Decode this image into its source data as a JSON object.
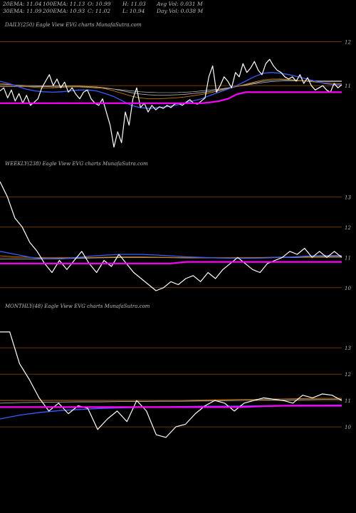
{
  "header": {
    "rows": [
      [
        "20EMA: 11.04",
        "100EMA: 11.13",
        "O: 10.99",
        "H: 11.03",
        "Avg Vol: 0.031 M"
      ],
      [
        "30EMA: 11.09",
        "200EMA: 10.93",
        "C: 11.02",
        "L: 10.94",
        "Day Vol: 0.038 M"
      ]
    ]
  },
  "colors": {
    "background": "#000000",
    "price": "#ffffff",
    "ema_fast": "#3a5cff",
    "ema_orange": "#c87800",
    "ema_grey": "#aaaaaa",
    "ema_white_thin": "#dddddd",
    "support": "#ff00ff",
    "level_line": "#8a4a00"
  },
  "chart_data": [
    {
      "type": "line",
      "label": "DAILY(250) Eagle   View  EVG charts MunafaSutra.com",
      "y_ticks": [
        {
          "value": "12",
          "level": 12
        },
        {
          "value": "11",
          "level": 11
        }
      ],
      "ylim": [
        9.3,
        12.3
      ],
      "series": [
        {
          "role": "price",
          "color": "#ffffff",
          "values": [
            10.88,
            10.95,
            10.72,
            10.9,
            10.65,
            10.82,
            10.6,
            10.78,
            10.55,
            10.62,
            10.7,
            10.95,
            11.1,
            11.25,
            11.0,
            11.15,
            10.95,
            11.08,
            10.85,
            10.95,
            10.8,
            10.7,
            10.85,
            10.9,
            10.7,
            10.6,
            10.55,
            10.7,
            10.4,
            10.1,
            9.6,
            9.95,
            9.7,
            10.4,
            10.1,
            10.7,
            10.95,
            10.5,
            10.6,
            10.4,
            10.55,
            10.45,
            10.52,
            10.48,
            10.55,
            10.5,
            10.58,
            10.6,
            10.55,
            10.62,
            10.68,
            10.6,
            10.58,
            10.65,
            10.72,
            11.2,
            11.45,
            10.85,
            11.0,
            11.2,
            11.1,
            10.95,
            11.3,
            11.2,
            11.5,
            11.3,
            11.4,
            11.55,
            11.35,
            11.25,
            11.5,
            11.6,
            11.45,
            11.35,
            11.3,
            11.2,
            11.15,
            11.2,
            11.1,
            11.25,
            11.05,
            11.18,
            11.0,
            10.9,
            10.95,
            11.0,
            10.9,
            10.85,
            11.05,
            10.95,
            11.02
          ]
        },
        {
          "role": "ema_fast",
          "color": "#3a5cff",
          "values": [
            11.1,
            11.05,
            10.98,
            10.92,
            10.88,
            10.86,
            10.85,
            10.86,
            10.88,
            10.9,
            10.9,
            10.88,
            10.82,
            10.75,
            10.65,
            10.55,
            10.5,
            10.48,
            10.5,
            10.52,
            10.55,
            10.6,
            10.65,
            10.7,
            10.78,
            10.85,
            10.92,
            11.0,
            11.1,
            11.2,
            11.28,
            11.3,
            11.28,
            11.25,
            11.2,
            11.15,
            11.1,
            11.05,
            11.02,
            11.02
          ]
        },
        {
          "role": "ema_orange",
          "color": "#c87800",
          "values": [
            11.05,
            11.03,
            11.0,
            10.98,
            10.96,
            10.95,
            10.95,
            10.96,
            10.97,
            10.98,
            10.97,
            10.96,
            10.93,
            10.88,
            10.82,
            10.76,
            10.72,
            10.7,
            10.7,
            10.71,
            10.72,
            10.74,
            10.77,
            10.8,
            10.84,
            10.88,
            10.93,
            10.98,
            11.03,
            11.08,
            11.13,
            11.15,
            11.15,
            11.14,
            11.12,
            11.1,
            11.08,
            11.06,
            11.05,
            11.04
          ]
        },
        {
          "role": "ema_grey",
          "color": "#aaaaaa",
          "values": [
            11.02,
            11.02,
            11.01,
            11.0,
            11.0,
            10.99,
            10.99,
            10.99,
            10.99,
            10.99,
            10.98,
            10.97,
            10.95,
            10.92,
            10.88,
            10.84,
            10.81,
            10.79,
            10.78,
            10.78,
            10.79,
            10.8,
            10.82,
            10.84,
            10.87,
            10.9,
            10.94,
            10.98,
            11.02,
            11.06,
            11.1,
            11.12,
            11.13,
            11.13,
            11.12,
            11.11,
            11.1,
            11.09,
            11.09,
            11.09
          ]
        },
        {
          "role": "ema_white_thin",
          "color": "#dddddd",
          "values": [
            10.98,
            10.98,
            10.98,
            10.98,
            10.98,
            10.98,
            10.97,
            10.97,
            10.97,
            10.97,
            10.96,
            10.95,
            10.94,
            10.92,
            10.9,
            10.88,
            10.86,
            10.85,
            10.84,
            10.84,
            10.84,
            10.85,
            10.86,
            10.88,
            10.9,
            10.92,
            10.95,
            10.98,
            11.01,
            11.04,
            11.07,
            11.09,
            11.1,
            11.11,
            11.11,
            11.11,
            11.11,
            11.11,
            11.11,
            11.11
          ]
        },
        {
          "role": "support",
          "color": "#ff00ff",
          "values": [
            10.6,
            10.6,
            10.6,
            10.6,
            10.6,
            10.6,
            10.6,
            10.6,
            10.6,
            10.6,
            10.6,
            10.6,
            10.6,
            10.6,
            10.6,
            10.6,
            10.6,
            10.6,
            10.6,
            10.6,
            10.6,
            10.6,
            10.6,
            10.6,
            10.62,
            10.65,
            10.7,
            10.8,
            10.85,
            10.85,
            10.85,
            10.85,
            10.85,
            10.85,
            10.85,
            10.85,
            10.85,
            10.85,
            10.85,
            10.85
          ]
        }
      ],
      "levels": [
        12,
        11
      ]
    },
    {
      "type": "line",
      "label": "WEEKLY(238) Eagle   View  EVG charts MunafaSutra.com",
      "y_ticks": [
        {
          "value": "13",
          "level": 13
        },
        {
          "value": "12",
          "level": 12
        },
        {
          "value": "11",
          "level": 11
        },
        {
          "value": "10",
          "level": 10
        }
      ],
      "ylim": [
        9.5,
        13.9
      ],
      "series": [
        {
          "role": "price",
          "color": "#ffffff",
          "values": [
            13.5,
            13.0,
            12.3,
            12.0,
            11.5,
            11.2,
            10.8,
            10.5,
            10.9,
            10.6,
            10.9,
            11.2,
            10.8,
            10.5,
            10.9,
            10.7,
            11.1,
            10.8,
            10.5,
            10.3,
            10.1,
            9.9,
            10.0,
            10.2,
            10.1,
            10.3,
            10.4,
            10.2,
            10.5,
            10.3,
            10.6,
            10.8,
            11.0,
            10.8,
            10.6,
            10.5,
            10.8,
            10.9,
            11.0,
            11.2,
            11.1,
            11.3,
            11.0,
            11.2,
            11.0,
            11.2,
            11.0
          ]
        },
        {
          "role": "ema_fast",
          "color": "#3a5cff",
          "values": [
            11.2,
            11.1,
            11.0,
            10.95,
            10.95,
            11.0,
            11.05,
            11.08,
            11.1,
            11.1,
            11.08,
            11.05,
            11.02,
            11.0,
            10.98,
            10.97,
            10.97,
            10.98,
            11.0,
            11.02,
            11.05,
            11.06,
            11.06
          ]
        },
        {
          "role": "ema_orange",
          "color": "#c87800",
          "values": [
            11.05,
            11.02,
            11.0,
            10.98,
            10.98,
            10.99,
            11.0,
            11.01,
            11.02,
            11.02,
            11.01,
            11.0,
            10.99,
            10.98,
            10.98,
            10.98,
            10.99,
            11.0,
            11.01,
            11.02,
            11.02,
            11.03,
            11.04
          ]
        },
        {
          "role": "ema_grey",
          "color": "#aaaaaa",
          "values": [
            10.95,
            10.95,
            10.95,
            10.95,
            10.96,
            10.97,
            10.98,
            10.99,
            11.0,
            11.0,
            11.0,
            10.99,
            10.98,
            10.98,
            10.98,
            10.98,
            10.98,
            10.99,
            11.0,
            11.0,
            11.01,
            11.01,
            11.01
          ]
        },
        {
          "role": "support",
          "color": "#ff00ff",
          "values": [
            10.8,
            10.8,
            10.8,
            10.8,
            10.8,
            10.8,
            10.8,
            10.8,
            10.8,
            10.8,
            10.8,
            10.8,
            10.85,
            10.85,
            10.85,
            10.85,
            10.85,
            10.85,
            10.85,
            10.85,
            10.85,
            10.85,
            10.85
          ]
        }
      ],
      "levels": [
        13,
        12,
        11,
        10
      ]
    },
    {
      "type": "line",
      "label": "MONTHLY(48) Eagle   View  EVG charts MunafaSutra.com",
      "y_ticks": [
        {
          "value": "13",
          "level": 13
        },
        {
          "value": "12",
          "level": 12
        },
        {
          "value": "11",
          "level": 11
        },
        {
          "value": "10",
          "level": 10
        }
      ],
      "ylim": [
        9.3,
        14.3
      ],
      "series": [
        {
          "role": "price",
          "color": "#ffffff",
          "values": [
            13.6,
            13.6,
            12.4,
            11.8,
            11.1,
            10.6,
            10.9,
            10.5,
            10.8,
            10.7,
            9.9,
            10.3,
            10.6,
            10.2,
            11.0,
            10.6,
            9.7,
            9.6,
            10.0,
            10.1,
            10.5,
            10.8,
            11.0,
            10.9,
            10.6,
            10.9,
            11.0,
            11.1,
            11.05,
            11.0,
            10.9,
            11.2,
            11.1,
            11.25,
            11.2,
            11.0
          ]
        },
        {
          "role": "ema_fast",
          "color": "#3a5cff",
          "values": [
            10.3,
            10.45,
            10.55,
            10.62,
            10.66,
            10.7,
            10.72,
            10.74,
            10.76,
            10.77,
            10.78,
            10.78,
            10.79,
            10.8,
            10.81,
            10.82,
            10.82,
            10.83
          ]
        },
        {
          "role": "ema_orange",
          "color": "#c87800",
          "values": [
            11.0,
            11.0,
            11.0,
            11.0,
            11.0,
            11.0,
            11.0,
            11.0,
            11.0,
            11.0,
            11.02,
            11.03,
            11.04,
            11.05,
            11.06,
            11.07,
            11.08,
            11.08
          ]
        },
        {
          "role": "ema_grey",
          "color": "#aaaaaa",
          "values": [
            10.9,
            10.92,
            10.93,
            10.94,
            10.95,
            10.95,
            10.96,
            10.96,
            10.97,
            10.97,
            10.98,
            10.99,
            11.0,
            11.01,
            11.02,
            11.03,
            11.04,
            11.05
          ]
        },
        {
          "role": "support",
          "color": "#ff00ff",
          "values": [
            10.75,
            10.75,
            10.75,
            10.75,
            10.75,
            10.75,
            10.75,
            10.75,
            10.75,
            10.75,
            10.75,
            10.75,
            10.75,
            10.78,
            10.8,
            10.8,
            10.8,
            10.8
          ]
        }
      ],
      "levels": [
        13,
        12,
        11,
        10
      ]
    }
  ]
}
